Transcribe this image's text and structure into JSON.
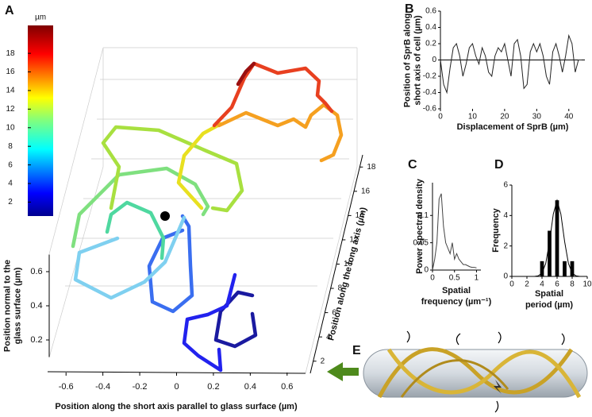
{
  "panel_labels": [
    "A",
    "B",
    "C",
    "D",
    "E"
  ],
  "chart_data": [
    {
      "type": "trajectory3d",
      "colorbar_label": "µm",
      "colorbar_lim": [
        0.5,
        21
      ],
      "colorbar_ticks": [
        2,
        4,
        6,
        8,
        10,
        12,
        14,
        16,
        18
      ],
      "xlabel": "Position along the short axis parallel to glass surface (µm)",
      "xlim": [
        -0.7,
        0.7
      ],
      "xticks": [
        -0.6,
        -0.4,
        -0.2,
        0,
        0.2,
        0.4,
        0.6
      ],
      "zlabel": [
        "Position normal to the",
        "glass surface (µm)"
      ],
      "zlim": [
        0.1,
        0.7
      ],
      "zticks": [
        0.2,
        0.4,
        0.6
      ],
      "ylabel": "Position along the long axis (µm)",
      "ylim": [
        1,
        19
      ],
      "yticks": [
        2,
        4,
        6,
        8,
        10,
        12,
        14,
        16,
        18
      ]
    },
    {
      "type": "line",
      "xlabel": "Displacement of SprB  (µm)",
      "ylabel": [
        "Position of SprB along",
        "short axis of cell (µm)"
      ],
      "x": [
        0,
        1,
        2,
        3,
        4,
        5,
        6,
        7,
        8,
        9,
        10,
        11,
        12,
        13,
        14,
        15,
        16,
        17,
        18,
        19,
        20,
        21,
        22,
        23,
        24,
        25,
        26,
        27,
        28,
        29,
        30,
        31,
        32,
        33,
        34,
        35,
        36,
        37,
        38,
        39,
        40,
        41,
        42,
        43,
        44
      ],
      "values": [
        0,
        -0.3,
        -0.4,
        -0.1,
        0.15,
        0.2,
        0.05,
        -0.2,
        -0.05,
        0.15,
        0.2,
        0.05,
        -0.05,
        0.15,
        0.05,
        -0.15,
        -0.2,
        0.05,
        0.15,
        0.1,
        0.2,
        0,
        -0.2,
        0.2,
        0.25,
        0.05,
        -0.35,
        -0.3,
        0.1,
        0.2,
        0.1,
        0.2,
        0.05,
        -0.2,
        -0.3,
        0.1,
        0.2,
        0.05,
        -0.15,
        0.05,
        0.3,
        0.2,
        -0.15,
        0,
        0
      ],
      "color": "#222",
      "reference_line": 0,
      "xlim": [
        0,
        45
      ],
      "xticks": [
        0,
        10,
        20,
        30,
        40
      ],
      "ylim": [
        -0.6,
        0.6
      ],
      "yticks": [
        -0.6,
        -0.4,
        -0.2,
        0,
        0.2,
        0.4,
        0.6
      ]
    },
    {
      "type": "line",
      "xlabel": [
        "Spatial",
        "frequency (µm⁻¹)"
      ],
      "ylabel": [
        "Power spectral density"
      ],
      "x": [
        0,
        0.05,
        0.1,
        0.15,
        0.2,
        0.25,
        0.3,
        0.35,
        0.4,
        0.45,
        0.5,
        0.55,
        0.6,
        0.65,
        0.7,
        0.75,
        0.8,
        0.85,
        0.9,
        0.95,
        1
      ],
      "values": [
        0,
        0.02,
        0.05,
        0.13,
        0.14,
        0.08,
        0.05,
        0.04,
        0.03,
        0.05,
        0.02,
        0.03,
        0.02,
        0.015,
        0.01,
        0.01,
        0.008,
        0.006,
        0.005,
        0.005,
        0.004
      ],
      "color": "#444",
      "xlim": [
        0,
        1.1
      ],
      "xticks": [
        0,
        0.5,
        1
      ],
      "ylim": [
        0,
        0.16
      ],
      "yticks": [
        0,
        0.05,
        0.1
      ]
    },
    {
      "type": "bar",
      "xlabel": [
        "Spatial",
        "period (µm)"
      ],
      "ylabel": [
        "Frequency"
      ],
      "x": [
        4,
        5,
        6,
        7,
        8
      ],
      "values": [
        1,
        3,
        5,
        1,
        1
      ],
      "color": "#000",
      "fit": {
        "x": [
          3,
          3.5,
          4,
          4.5,
          5,
          5.5,
          6,
          6.5,
          7,
          7.5,
          8,
          8.5,
          9
        ],
        "values": [
          0,
          0.04,
          0.22,
          0.86,
          2.29,
          4.1,
          5,
          4.1,
          2.29,
          0.86,
          0.22,
          0.04,
          0
        ]
      },
      "xlim": [
        0,
        10
      ],
      "xticks": [
        0,
        2,
        4,
        6,
        8,
        10
      ],
      "ylim": [
        0,
        6
      ],
      "yticks": [
        0,
        2,
        4,
        6
      ]
    }
  ]
}
